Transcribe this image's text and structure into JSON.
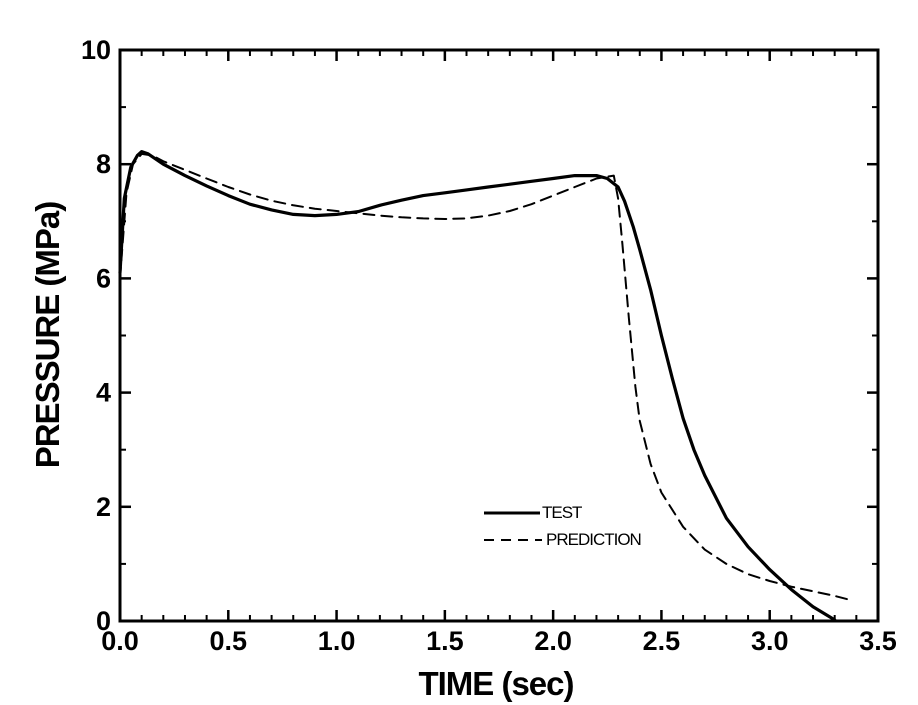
{
  "chart_data": {
    "type": "line",
    "title": "",
    "xlabel": "TIME (sec)",
    "ylabel": "PRESSURE (MPa)",
    "xlim": [
      0.0,
      3.5
    ],
    "ylim": [
      0,
      10
    ],
    "xticks": [
      "0.0",
      "0.5",
      "1.0",
      "1.5",
      "2.0",
      "2.5",
      "3.0",
      "3.5"
    ],
    "yticks": [
      "0",
      "2",
      "4",
      "6",
      "8",
      "10"
    ],
    "grid": false,
    "legend_position": "lower-center",
    "series": [
      {
        "name": "TEST",
        "style": "solid",
        "x": [
          0.0,
          0.02,
          0.05,
          0.08,
          0.1,
          0.13,
          0.2,
          0.3,
          0.4,
          0.5,
          0.6,
          0.7,
          0.8,
          0.9,
          1.0,
          1.1,
          1.2,
          1.3,
          1.4,
          1.5,
          1.6,
          1.7,
          1.8,
          1.9,
          2.0,
          2.1,
          2.2,
          2.25,
          2.3,
          2.33,
          2.37,
          2.4,
          2.45,
          2.5,
          2.55,
          2.6,
          2.65,
          2.7,
          2.8,
          2.9,
          3.0,
          3.1,
          3.2,
          3.3
        ],
        "y": [
          6.1,
          7.4,
          7.95,
          8.15,
          8.22,
          8.18,
          8.0,
          7.8,
          7.62,
          7.45,
          7.3,
          7.2,
          7.12,
          7.1,
          7.12,
          7.17,
          7.28,
          7.37,
          7.45,
          7.5,
          7.55,
          7.6,
          7.65,
          7.7,
          7.75,
          7.8,
          7.8,
          7.75,
          7.6,
          7.35,
          6.9,
          6.5,
          5.8,
          5.0,
          4.25,
          3.55,
          3.0,
          2.55,
          1.8,
          1.3,
          0.9,
          0.55,
          0.25,
          0.02
        ]
      },
      {
        "name": "PREDICTION",
        "style": "dashed",
        "x": [
          0.0,
          0.03,
          0.06,
          0.1,
          0.15,
          0.2,
          0.3,
          0.4,
          0.5,
          0.6,
          0.7,
          0.8,
          0.9,
          1.0,
          1.1,
          1.2,
          1.3,
          1.4,
          1.5,
          1.6,
          1.7,
          1.8,
          1.9,
          2.0,
          2.1,
          2.2,
          2.28,
          2.3,
          2.32,
          2.35,
          2.38,
          2.4,
          2.45,
          2.5,
          2.6,
          2.7,
          2.8,
          2.9,
          3.0,
          3.1,
          3.2,
          3.3,
          3.36
        ],
        "y": [
          6.0,
          7.5,
          8.0,
          8.18,
          8.15,
          8.05,
          7.9,
          7.75,
          7.6,
          7.47,
          7.36,
          7.28,
          7.22,
          7.18,
          7.14,
          7.1,
          7.07,
          7.05,
          7.04,
          7.05,
          7.1,
          7.18,
          7.3,
          7.45,
          7.6,
          7.75,
          7.8,
          7.4,
          6.6,
          5.3,
          4.1,
          3.5,
          2.75,
          2.25,
          1.65,
          1.25,
          1.0,
          0.82,
          0.7,
          0.6,
          0.52,
          0.44,
          0.38
        ]
      }
    ]
  }
}
